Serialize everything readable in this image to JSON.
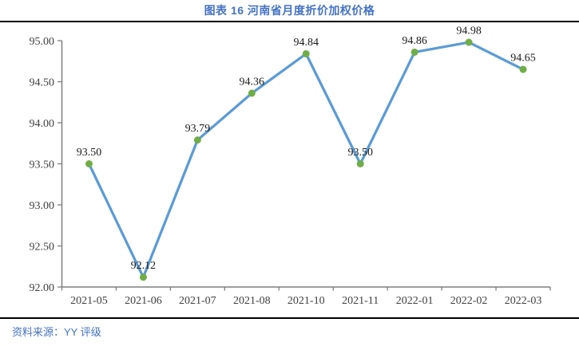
{
  "figure": {
    "title": "图表 16 河南省月度折价加权价格",
    "source": "资料来源：YY 评级"
  },
  "colors": {
    "title_accent": "#4472C4",
    "line": "#5B9BD5",
    "marker": "#70AD47",
    "axis": "#7F7F7F",
    "tick_label": "#404040",
    "data_label": "#1a1a1a",
    "divider": "#000000"
  },
  "chart_data": {
    "type": "line",
    "title": "图表 16 河南省月度折价加权价格",
    "categories": [
      "2021-05",
      "2021-06",
      "2021-07",
      "2021-08",
      "2021-10",
      "2021-11",
      "2022-01",
      "2022-02",
      "2022-03"
    ],
    "values": [
      93.5,
      92.12,
      93.79,
      94.36,
      94.84,
      93.5,
      94.86,
      94.98,
      94.65
    ],
    "data_labels": [
      "93.50",
      "92.12",
      "93.79",
      "94.36",
      "94.84",
      "93.50",
      "94.86",
      "94.98",
      "94.65"
    ],
    "xlabel": "",
    "ylabel": "",
    "ylim": [
      92.0,
      95.0
    ],
    "ytick_step": 0.5,
    "ytick_labels": [
      "92.00",
      "92.50",
      "93.00",
      "93.50",
      "94.00",
      "94.50",
      "95.00"
    ],
    "grid": false,
    "legend_position": "none",
    "marker": "circle",
    "source": "资料来源：YY 评级"
  }
}
